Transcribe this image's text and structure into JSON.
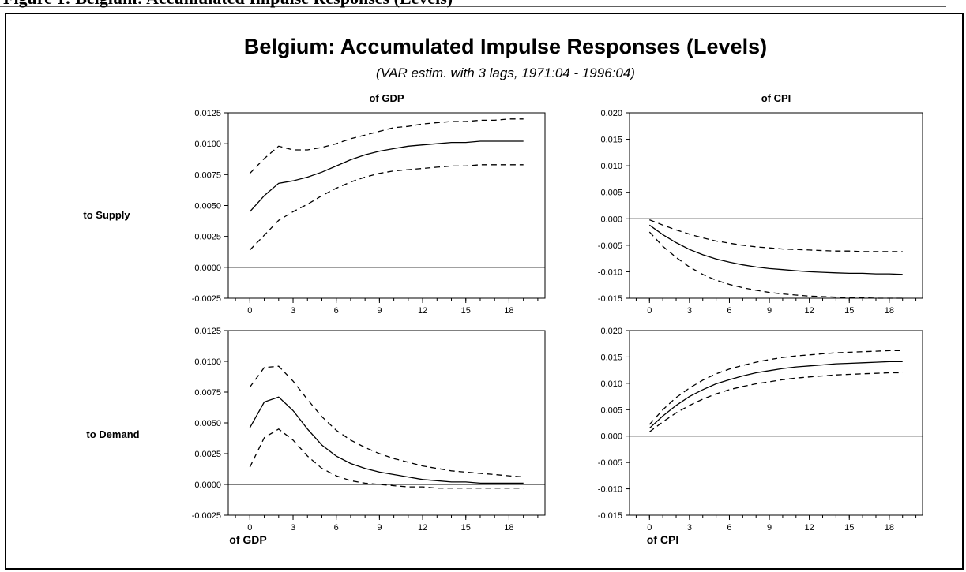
{
  "figure": {
    "header_text": "Figure 1: Belgium: Accumulated Impulse Responses (Levels)",
    "title": "Belgium: Accumulated Impulse Responses (Levels)",
    "subtitle": "(VAR estim. with 3 lags, 1971:04 - 1996:04)",
    "row_labels": [
      "to Supply",
      "to Demand"
    ],
    "bottom_labels": [
      "of GDP",
      "of CPI"
    ]
  },
  "chart_data": [
    {
      "type": "line",
      "title": "of GDP",
      "row": "to Supply",
      "x": [
        0,
        1,
        2,
        3,
        4,
        5,
        6,
        7,
        8,
        9,
        10,
        11,
        12,
        13,
        14,
        15,
        16,
        17,
        18,
        19
      ],
      "xticks": [
        0,
        3,
        6,
        9,
        12,
        15,
        18
      ],
      "xlim": [
        -1.5,
        20.5
      ],
      "ylim": [
        -0.0025,
        0.0125
      ],
      "yticks": [
        "-0.0025",
        "0.0000",
        "0.0025",
        "0.0050",
        "0.0075",
        "0.0100",
        "0.0125"
      ],
      "zero_line": true,
      "series": [
        {
          "style": "solid",
          "values": [
            0.0045,
            0.0058,
            0.0068,
            0.007,
            0.0073,
            0.0077,
            0.0082,
            0.0087,
            0.0091,
            0.0094,
            0.0096,
            0.0098,
            0.0099,
            0.01,
            0.0101,
            0.0101,
            0.0102,
            0.0102,
            0.0102,
            0.0102
          ]
        },
        {
          "style": "dashed",
          "values": [
            0.0076,
            0.0088,
            0.0098,
            0.0095,
            0.0095,
            0.0097,
            0.01,
            0.0104,
            0.0107,
            0.011,
            0.0113,
            0.0114,
            0.0116,
            0.0117,
            0.0118,
            0.0118,
            0.0119,
            0.0119,
            0.012,
            0.012
          ]
        },
        {
          "style": "dashed",
          "values": [
            0.0014,
            0.0026,
            0.0038,
            0.0045,
            0.0051,
            0.0058,
            0.0064,
            0.0069,
            0.0073,
            0.0076,
            0.0078,
            0.0079,
            0.008,
            0.0081,
            0.0082,
            0.0082,
            0.0083,
            0.0083,
            0.0083,
            0.0083
          ]
        }
      ]
    },
    {
      "type": "line",
      "title": "of CPI",
      "row": "to Supply",
      "x": [
        0,
        1,
        2,
        3,
        4,
        5,
        6,
        7,
        8,
        9,
        10,
        11,
        12,
        13,
        14,
        15,
        16,
        17,
        18,
        19
      ],
      "xticks": [
        0,
        3,
        6,
        9,
        12,
        15,
        18
      ],
      "xlim": [
        -1.5,
        20.5
      ],
      "ylim": [
        -0.015,
        0.02
      ],
      "yticks": [
        "-0.015",
        "-0.010",
        "-0.005",
        "0.000",
        "0.005",
        "0.010",
        "0.015",
        "0.020"
      ],
      "zero_line": true,
      "series": [
        {
          "style": "solid",
          "values": [
            -0.0012,
            -0.003,
            -0.0045,
            -0.0058,
            -0.0068,
            -0.0076,
            -0.0082,
            -0.0087,
            -0.0091,
            -0.0094,
            -0.0096,
            -0.0098,
            -0.01,
            -0.0101,
            -0.0102,
            -0.0103,
            -0.0103,
            -0.0104,
            -0.0104,
            -0.0105
          ]
        },
        {
          "style": "dashed",
          "values": [
            -0.0002,
            -0.0012,
            -0.0021,
            -0.0029,
            -0.0036,
            -0.0042,
            -0.0046,
            -0.005,
            -0.0053,
            -0.0055,
            -0.0057,
            -0.0058,
            -0.0059,
            -0.006,
            -0.0061,
            -0.0061,
            -0.0062,
            -0.0062,
            -0.0062,
            -0.0062
          ]
        },
        {
          "style": "dashed",
          "values": [
            -0.0025,
            -0.0052,
            -0.0073,
            -0.0091,
            -0.0105,
            -0.0116,
            -0.0124,
            -0.013,
            -0.0135,
            -0.0139,
            -0.0142,
            -0.0144,
            -0.0146,
            -0.0147,
            -0.0148,
            -0.0149,
            -0.0149,
            -0.015,
            -0.015,
            -0.015
          ]
        }
      ]
    },
    {
      "type": "line",
      "title": "",
      "row": "to Demand",
      "x": [
        0,
        1,
        2,
        3,
        4,
        5,
        6,
        7,
        8,
        9,
        10,
        11,
        12,
        13,
        14,
        15,
        16,
        17,
        18,
        19
      ],
      "xticks": [
        0,
        3,
        6,
        9,
        12,
        15,
        18
      ],
      "xlim": [
        -1.5,
        20.5
      ],
      "ylim": [
        -0.0025,
        0.0125
      ],
      "yticks": [
        "-0.0025",
        "0.0000",
        "0.0025",
        "0.0050",
        "0.0075",
        "0.0100",
        "0.0125"
      ],
      "zero_line": true,
      "series": [
        {
          "style": "solid",
          "values": [
            0.0046,
            0.0067,
            0.0071,
            0.006,
            0.0045,
            0.0032,
            0.0023,
            0.0017,
            0.0013,
            0.001,
            0.0008,
            0.0006,
            0.0004,
            0.0003,
            0.0002,
            0.0002,
            0.0001,
            0.0001,
            0.0001,
            0.0001
          ]
        },
        {
          "style": "dashed",
          "values": [
            0.0079,
            0.0095,
            0.0096,
            0.0084,
            0.0069,
            0.0055,
            0.0044,
            0.0036,
            0.003,
            0.0025,
            0.0021,
            0.0018,
            0.0015,
            0.0013,
            0.0011,
            0.001,
            0.0009,
            0.0008,
            0.0007,
            0.0006
          ]
        },
        {
          "style": "dashed",
          "values": [
            0.0014,
            0.0038,
            0.0045,
            0.0036,
            0.0023,
            0.0013,
            0.0007,
            0.0003,
            0.0001,
            0.0,
            -0.0001,
            -0.0002,
            -0.0002,
            -0.0003,
            -0.0003,
            -0.0003,
            -0.0003,
            -0.0003,
            -0.0003,
            -0.0003
          ]
        }
      ]
    },
    {
      "type": "line",
      "title": "",
      "row": "to Demand",
      "x": [
        0,
        1,
        2,
        3,
        4,
        5,
        6,
        7,
        8,
        9,
        10,
        11,
        12,
        13,
        14,
        15,
        16,
        17,
        18,
        19
      ],
      "xticks": [
        0,
        3,
        6,
        9,
        12,
        15,
        18
      ],
      "xlim": [
        -1.5,
        20.5
      ],
      "ylim": [
        -0.015,
        0.02
      ],
      "yticks": [
        "-0.015",
        "-0.010",
        "-0.005",
        "0.000",
        "0.005",
        "0.010",
        "0.015",
        "0.020"
      ],
      "zero_line": true,
      "series": [
        {
          "style": "solid",
          "values": [
            0.0015,
            0.0038,
            0.0058,
            0.0075,
            0.0088,
            0.0099,
            0.0107,
            0.0114,
            0.012,
            0.0124,
            0.0128,
            0.0131,
            0.0133,
            0.0135,
            0.0137,
            0.0138,
            0.0139,
            0.014,
            0.0141,
            0.0141
          ]
        },
        {
          "style": "dashed",
          "values": [
            0.0022,
            0.005,
            0.0073,
            0.0091,
            0.0106,
            0.0118,
            0.0127,
            0.0134,
            0.014,
            0.0145,
            0.0149,
            0.0152,
            0.0154,
            0.0156,
            0.0158,
            0.0159,
            0.016,
            0.0161,
            0.0162,
            0.0162
          ]
        },
        {
          "style": "dashed",
          "values": [
            0.0008,
            0.0027,
            0.0044,
            0.0058,
            0.007,
            0.008,
            0.0088,
            0.0094,
            0.0099,
            0.0103,
            0.0107,
            0.011,
            0.0112,
            0.0114,
            0.0116,
            0.0117,
            0.0118,
            0.0119,
            0.012,
            0.012
          ]
        }
      ]
    }
  ]
}
